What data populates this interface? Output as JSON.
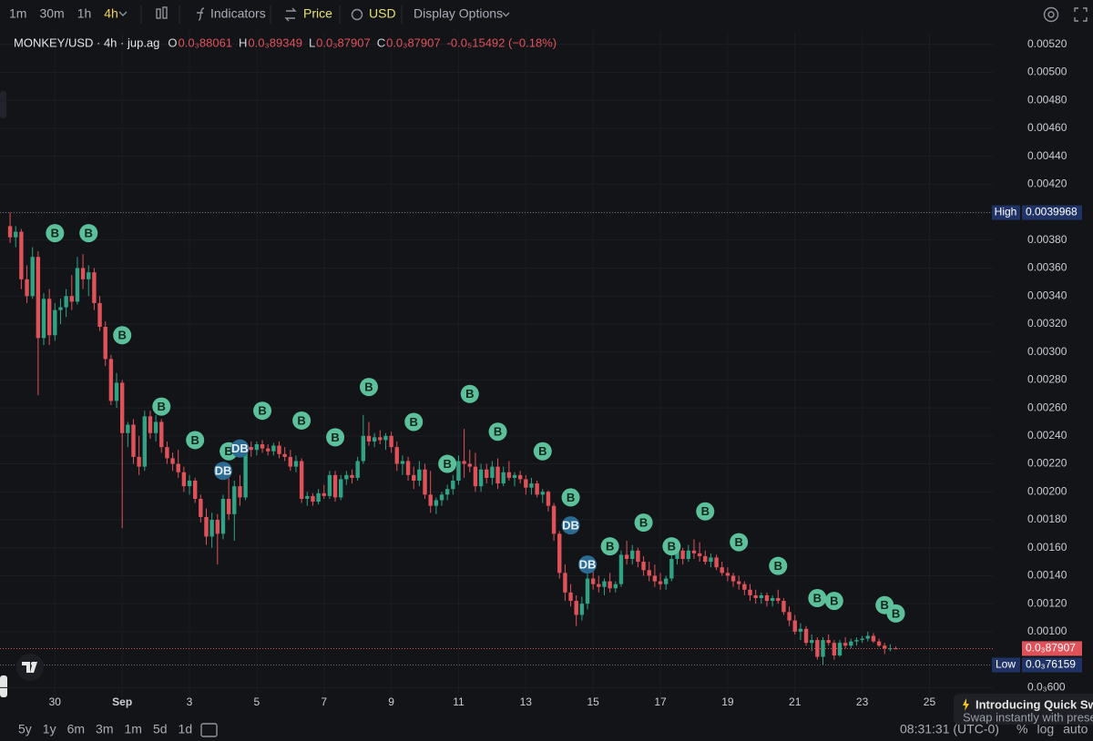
{
  "toolbar": {
    "intervals": [
      "1m",
      "30m",
      "1h",
      "4h"
    ],
    "active_interval": 3,
    "indicators": "Indicators",
    "price": "Price",
    "currency": "USD",
    "display": "Display Options"
  },
  "chart_data": {
    "type": "candlestick",
    "symbol": "MONKEY/USD · 4h · jup.ag",
    "ohlc_legend": [
      {
        "key": "O",
        "value": "0.0₃88061"
      },
      {
        "key": "H",
        "value": "0.0₃89349"
      },
      {
        "key": "L",
        "value": "0.0₃87907"
      },
      {
        "key": "C",
        "value": "0.0₃87907"
      }
    ],
    "change": "-0.0₅15492 (−0.18%)",
    "up_color": "#2fa383",
    "down_color": "#e0525a",
    "grid": true,
    "candles": [
      [
        0.0039,
        0.0039968,
        0.00378,
        0.00382
      ],
      [
        0.00382,
        0.0039,
        0.00375,
        0.00386
      ],
      [
        0.00386,
        0.00388,
        0.00345,
        0.00352
      ],
      [
        0.00352,
        0.00362,
        0.00335,
        0.0034
      ],
      [
        0.0034,
        0.00375,
        0.00338,
        0.00368
      ],
      [
        0.00368,
        0.00372,
        0.00269,
        0.0031
      ],
      [
        0.0031,
        0.00342,
        0.00305,
        0.00338
      ],
      [
        0.00338,
        0.00345,
        0.00305,
        0.00312
      ],
      [
        0.00312,
        0.00335,
        0.00308,
        0.0033
      ],
      [
        0.0033,
        0.00338,
        0.0032,
        0.00332
      ],
      [
        0.00332,
        0.00345,
        0.00325,
        0.0034
      ],
      [
        0.0034,
        0.00355,
        0.0033,
        0.00336
      ],
      [
        0.00336,
        0.00368,
        0.00334,
        0.0036
      ],
      [
        0.0036,
        0.0037,
        0.00345,
        0.00352
      ],
      [
        0.00352,
        0.00362,
        0.0034,
        0.00357
      ],
      [
        0.00357,
        0.0036,
        0.0033,
        0.00335
      ],
      [
        0.00335,
        0.0034,
        0.00315,
        0.00318
      ],
      [
        0.00318,
        0.00322,
        0.0029,
        0.00295
      ],
      [
        0.00295,
        0.00298,
        0.00262,
        0.00265
      ],
      [
        0.00265,
        0.00285,
        0.0026,
        0.00278
      ],
      [
        0.00278,
        0.0028,
        0.00174,
        0.00242
      ],
      [
        0.00242,
        0.0025,
        0.00232,
        0.00248
      ],
      [
        0.00248,
        0.00252,
        0.0022,
        0.00225
      ],
      [
        0.00225,
        0.0024,
        0.00212,
        0.00218
      ],
      [
        0.00218,
        0.00258,
        0.00215,
        0.00254
      ],
      [
        0.00254,
        0.00258,
        0.00238,
        0.00242
      ],
      [
        0.00242,
        0.00255,
        0.00236,
        0.0025
      ],
      [
        0.0025,
        0.00252,
        0.00228,
        0.00232
      ],
      [
        0.00232,
        0.00236,
        0.0022,
        0.00224
      ],
      [
        0.00224,
        0.00228,
        0.00215,
        0.0022
      ],
      [
        0.0022,
        0.0023,
        0.0021,
        0.00214
      ],
      [
        0.00214,
        0.00218,
        0.002,
        0.00204
      ],
      [
        0.00204,
        0.00212,
        0.00198,
        0.00208
      ],
      [
        0.00208,
        0.0021,
        0.00192,
        0.00195
      ],
      [
        0.00195,
        0.00198,
        0.00178,
        0.00182
      ],
      [
        0.00182,
        0.00188,
        0.00162,
        0.00168
      ],
      [
        0.00168,
        0.00185,
        0.0016,
        0.0018
      ],
      [
        0.0018,
        0.00184,
        0.00148,
        0.0017
      ],
      [
        0.0017,
        0.00198,
        0.00166,
        0.00195
      ],
      [
        0.00195,
        0.0021,
        0.0018,
        0.00184
      ],
      [
        0.00184,
        0.00208,
        0.00165,
        0.00204
      ],
      [
        0.00204,
        0.00212,
        0.0019,
        0.00196
      ],
      [
        0.00196,
        0.00235,
        0.00194,
        0.00232
      ],
      [
        0.00232,
        0.00236,
        0.00225,
        0.0023
      ],
      [
        0.0023,
        0.00236,
        0.00226,
        0.00234
      ],
      [
        0.00234,
        0.00237,
        0.00228,
        0.00231
      ],
      [
        0.00231,
        0.00234,
        0.00226,
        0.00229
      ],
      [
        0.00229,
        0.00235,
        0.00226,
        0.00233
      ],
      [
        0.00233,
        0.00236,
        0.00224,
        0.00227
      ],
      [
        0.00227,
        0.00232,
        0.00222,
        0.00225
      ],
      [
        0.00225,
        0.0023,
        0.00215,
        0.00218
      ],
      [
        0.00218,
        0.00226,
        0.00214,
        0.00222
      ],
      [
        0.00222,
        0.00224,
        0.00192,
        0.00195
      ],
      [
        0.00195,
        0.002,
        0.0019,
        0.00197
      ],
      [
        0.00197,
        0.00199,
        0.0019,
        0.00193
      ],
      [
        0.00193,
        0.00202,
        0.00191,
        0.00199
      ],
      [
        0.00199,
        0.00205,
        0.00195,
        0.00197
      ],
      [
        0.00197,
        0.00215,
        0.00195,
        0.00212
      ],
      [
        0.00212,
        0.00215,
        0.00193,
        0.00196
      ],
      [
        0.00196,
        0.00212,
        0.00194,
        0.00209
      ],
      [
        0.00209,
        0.00215,
        0.00205,
        0.00212
      ],
      [
        0.00212,
        0.00216,
        0.00206,
        0.0021
      ],
      [
        0.0021,
        0.00225,
        0.00208,
        0.00222
      ],
      [
        0.00222,
        0.00255,
        0.0022,
        0.0024
      ],
      [
        0.0024,
        0.0025,
        0.00233,
        0.00236
      ],
      [
        0.00236,
        0.00242,
        0.00232,
        0.00239
      ],
      [
        0.00239,
        0.00244,
        0.00234,
        0.00237
      ],
      [
        0.00237,
        0.00242,
        0.0023,
        0.0024
      ],
      [
        0.0024,
        0.00243,
        0.00228,
        0.00232
      ],
      [
        0.00232,
        0.00236,
        0.00215,
        0.0022
      ],
      [
        0.0022,
        0.00226,
        0.00212,
        0.00222
      ],
      [
        0.00222,
        0.00225,
        0.00208,
        0.00212
      ],
      [
        0.00212,
        0.00218,
        0.00202,
        0.00208
      ],
      [
        0.00208,
        0.00222,
        0.00204,
        0.00216
      ],
      [
        0.00216,
        0.0022,
        0.00195,
        0.00198
      ],
      [
        0.00198,
        0.00215,
        0.00185,
        0.0019
      ],
      [
        0.0019,
        0.00196,
        0.00184,
        0.00194
      ],
      [
        0.00194,
        0.002,
        0.0019,
        0.00198
      ],
      [
        0.00198,
        0.00205,
        0.00194,
        0.00202
      ],
      [
        0.00202,
        0.00212,
        0.00198,
        0.00208
      ],
      [
        0.00208,
        0.00226,
        0.00205,
        0.00222
      ],
      [
        0.00222,
        0.00245,
        0.0021,
        0.0022
      ],
      [
        0.0022,
        0.0023,
        0.00214,
        0.00218
      ],
      [
        0.00218,
        0.00228,
        0.002,
        0.00204
      ],
      [
        0.00204,
        0.0022,
        0.002,
        0.00216
      ],
      [
        0.00216,
        0.0022,
        0.00206,
        0.0021
      ],
      [
        0.0021,
        0.00222,
        0.00205,
        0.00218
      ],
      [
        0.00218,
        0.00224,
        0.00202,
        0.00206
      ],
      [
        0.00206,
        0.00218,
        0.00204,
        0.00214
      ],
      [
        0.00214,
        0.00222,
        0.00208,
        0.0021
      ],
      [
        0.0021,
        0.00214,
        0.00204,
        0.00212
      ],
      [
        0.00212,
        0.00215,
        0.00206,
        0.00209
      ],
      [
        0.00209,
        0.00212,
        0.00198,
        0.00203
      ],
      [
        0.00203,
        0.0021,
        0.00198,
        0.00206
      ],
      [
        0.00206,
        0.00208,
        0.00196,
        0.00198
      ],
      [
        0.00198,
        0.00202,
        0.00192,
        0.002
      ],
      [
        0.002,
        0.00201,
        0.00186,
        0.0019
      ],
      [
        0.0019,
        0.00192,
        0.00165,
        0.0017
      ],
      [
        0.0017,
        0.00172,
        0.00138,
        0.00142
      ],
      [
        0.00142,
        0.00148,
        0.00122,
        0.00128
      ],
      [
        0.00128,
        0.00134,
        0.00118,
        0.00122
      ],
      [
        0.00122,
        0.00126,
        0.00104,
        0.00112
      ],
      [
        0.00112,
        0.00125,
        0.00108,
        0.0012
      ],
      [
        0.0012,
        0.00142,
        0.00116,
        0.00138
      ],
      [
        0.00138,
        0.00145,
        0.0013,
        0.00134
      ],
      [
        0.00134,
        0.0014,
        0.00128,
        0.00132
      ],
      [
        0.00132,
        0.00138,
        0.00126,
        0.00136
      ],
      [
        0.00136,
        0.00142,
        0.00128,
        0.00131
      ],
      [
        0.00131,
        0.00136,
        0.00128,
        0.00134
      ],
      [
        0.00134,
        0.00158,
        0.00132,
        0.00155
      ],
      [
        0.00155,
        0.00165,
        0.00148,
        0.00152
      ],
      [
        0.00152,
        0.00162,
        0.00148,
        0.00158
      ],
      [
        0.00158,
        0.0016,
        0.00146,
        0.0015
      ],
      [
        0.0015,
        0.00154,
        0.0014,
        0.00144
      ],
      [
        0.00144,
        0.0015,
        0.00136,
        0.0014
      ],
      [
        0.0014,
        0.00148,
        0.00132,
        0.00136
      ],
      [
        0.00136,
        0.00142,
        0.0013,
        0.00134
      ],
      [
        0.00134,
        0.0014,
        0.0013,
        0.00138
      ],
      [
        0.00138,
        0.00156,
        0.00136,
        0.00152
      ],
      [
        0.00152,
        0.00162,
        0.00148,
        0.00158
      ],
      [
        0.00158,
        0.0016,
        0.00148,
        0.00152
      ],
      [
        0.00152,
        0.00162,
        0.0015,
        0.00158
      ],
      [
        0.00158,
        0.00166,
        0.00152,
        0.00156
      ],
      [
        0.00156,
        0.00164,
        0.0015,
        0.00154
      ],
      [
        0.00154,
        0.00158,
        0.00148,
        0.0015
      ],
      [
        0.0015,
        0.00156,
        0.00146,
        0.00153
      ],
      [
        0.00153,
        0.00155,
        0.00144,
        0.00146
      ],
      [
        0.00146,
        0.0015,
        0.0014,
        0.00142
      ],
      [
        0.00142,
        0.00146,
        0.00136,
        0.0014
      ],
      [
        0.0014,
        0.00142,
        0.00132,
        0.00136
      ],
      [
        0.00136,
        0.0014,
        0.0013,
        0.00134
      ],
      [
        0.00134,
        0.00136,
        0.00126,
        0.0013
      ],
      [
        0.0013,
        0.00134,
        0.00122,
        0.00126
      ],
      [
        0.00126,
        0.0013,
        0.0012,
        0.00124
      ],
      [
        0.00124,
        0.00128,
        0.0012,
        0.00126
      ],
      [
        0.00126,
        0.00128,
        0.00118,
        0.00122
      ],
      [
        0.00122,
        0.00126,
        0.00118,
        0.00124
      ],
      [
        0.00124,
        0.0013,
        0.0012,
        0.00122
      ],
      [
        0.00122,
        0.00124,
        0.00112,
        0.00114
      ],
      [
        0.00114,
        0.00118,
        0.00104,
        0.00108
      ],
      [
        0.00108,
        0.00112,
        0.00098,
        0.001
      ],
      [
        0.001,
        0.00106,
        0.00094,
        0.00102
      ],
      [
        0.00102,
        0.00104,
        0.0009,
        0.00092
      ],
      [
        0.00092,
        0.00098,
        0.00086,
        0.00094
      ],
      [
        0.00094,
        0.00096,
        0.0008,
        0.00082
      ],
      [
        0.00082,
        0.00096,
        0.00076159,
        0.00094
      ],
      [
        0.00094,
        0.00098,
        0.0009,
        0.00092
      ],
      [
        0.00092,
        0.00094,
        0.0008,
        0.00083
      ],
      [
        0.00083,
        0.00094,
        0.00082,
        0.00092
      ],
      [
        0.00092,
        0.00096,
        0.00088,
        0.0009
      ],
      [
        0.0009,
        0.00095,
        0.00088,
        0.00093
      ],
      [
        0.00093,
        0.00096,
        0.0009,
        0.00094
      ],
      [
        0.00094,
        0.00097,
        0.00092,
        0.00095
      ],
      [
        0.00095,
        0.001,
        0.00093,
        0.00097
      ],
      [
        0.00097,
        0.00099,
        0.00092,
        0.00093
      ],
      [
        0.00093,
        0.00095,
        0.00089,
        0.0009
      ],
      [
        0.0009,
        0.00092,
        0.00084,
        0.00088
      ],
      [
        0.00088,
        0.00091,
        0.00086,
        0.00088061
      ],
      [
        0.00088061,
        0.00089349,
        0.00087907,
        0.00087907
      ]
    ],
    "xlim": [
      -1.8,
      175.3
    ],
    "xticks": [
      {
        "value": 8,
        "label": "30"
      },
      {
        "value": 20,
        "label": "Sep"
      },
      {
        "value": 32,
        "label": "3"
      },
      {
        "value": 44,
        "label": "5"
      },
      {
        "value": 56,
        "label": "7"
      },
      {
        "value": 68,
        "label": "9"
      },
      {
        "value": 80,
        "label": "11"
      },
      {
        "value": 92,
        "label": "13"
      },
      {
        "value": 104,
        "label": "15"
      },
      {
        "value": 116,
        "label": "17"
      },
      {
        "value": 128,
        "label": "19"
      },
      {
        "value": 140,
        "label": "21"
      },
      {
        "value": 152,
        "label": "23"
      },
      {
        "value": 164,
        "label": "25"
      }
    ],
    "ylim": [
      0.00055,
      0.00527
    ],
    "yticks": [
      {
        "value": 0.0052,
        "label": "0.00520"
      },
      {
        "value": 0.005,
        "label": "0.00500"
      },
      {
        "value": 0.0048,
        "label": "0.00480"
      },
      {
        "value": 0.0046,
        "label": "0.00460"
      },
      {
        "value": 0.0044,
        "label": "0.00440"
      },
      {
        "value": 0.0042,
        "label": "0.00420"
      },
      {
        "value": 0.004,
        "label": "0.00400"
      },
      {
        "value": 0.0038,
        "label": "0.00380"
      },
      {
        "value": 0.0036,
        "label": "0.00360"
      },
      {
        "value": 0.0034,
        "label": "0.00340"
      },
      {
        "value": 0.0032,
        "label": "0.00320"
      },
      {
        "value": 0.003,
        "label": "0.00300"
      },
      {
        "value": 0.0028,
        "label": "0.00280"
      },
      {
        "value": 0.0026,
        "label": "0.00260"
      },
      {
        "value": 0.0024,
        "label": "0.00240"
      },
      {
        "value": 0.0022,
        "label": "0.00220"
      },
      {
        "value": 0.002,
        "label": "0.00200"
      },
      {
        "value": 0.0018,
        "label": "0.00180"
      },
      {
        "value": 0.0016,
        "label": "0.00160"
      },
      {
        "value": 0.0014,
        "label": "0.00140"
      },
      {
        "value": 0.0012,
        "label": "0.00120"
      },
      {
        "value": 0.001,
        "label": "0.00100"
      },
      {
        "value": 0.0006,
        "label": "0.0₃600"
      }
    ],
    "price_lines": [
      {
        "name": "High",
        "value": 0.0039968,
        "color": "#1f3366"
      },
      {
        "value": 0.00087907,
        "label": "0.0₃87907",
        "color": "#e0525a"
      },
      {
        "name": "Low",
        "value": 0.00076159,
        "label": "0.0₃76159",
        "color": "#1f3366"
      }
    ],
    "marker_colors": {
      "B": "#5cc09b",
      "DB": "#2b6b92"
    },
    "markers": [
      {
        "label": "B",
        "candle": 8,
        "price": 0.00385
      },
      {
        "label": "B",
        "candle": 14,
        "price": 0.00385
      },
      {
        "label": "B",
        "candle": 20,
        "price": 0.00312
      },
      {
        "label": "B",
        "candle": 27,
        "price": 0.00261
      },
      {
        "label": "B",
        "candle": 33,
        "price": 0.00237
      },
      {
        "label": "DB",
        "candle": 38,
        "price": 0.00215
      },
      {
        "label": "B",
        "candle": 39,
        "price": 0.00229
      },
      {
        "label": "DB",
        "candle": 41,
        "price": 0.00231
      },
      {
        "label": "B",
        "candle": 45,
        "price": 0.00258
      },
      {
        "label": "B",
        "candle": 52,
        "price": 0.00251
      },
      {
        "label": "B",
        "candle": 58,
        "price": 0.00239
      },
      {
        "label": "B",
        "candle": 64,
        "price": 0.00275
      },
      {
        "label": "B",
        "candle": 72,
        "price": 0.0025
      },
      {
        "label": "B",
        "candle": 78,
        "price": 0.0022
      },
      {
        "label": "B",
        "candle": 82,
        "price": 0.0027
      },
      {
        "label": "B",
        "candle": 87,
        "price": 0.00243
      },
      {
        "label": "B",
        "candle": 95,
        "price": 0.00229
      },
      {
        "label": "B",
        "candle": 100,
        "price": 0.00196
      },
      {
        "label": "DB",
        "candle": 100,
        "price": 0.00176
      },
      {
        "label": "DB",
        "candle": 103,
        "price": 0.00148
      },
      {
        "label": "B",
        "candle": 107,
        "price": 0.00161
      },
      {
        "label": "B",
        "candle": 113,
        "price": 0.00178
      },
      {
        "label": "B",
        "candle": 118,
        "price": 0.00161
      },
      {
        "label": "B",
        "candle": 124,
        "price": 0.00186
      },
      {
        "label": "B",
        "candle": 130,
        "price": 0.00164
      },
      {
        "label": "B",
        "candle": 137,
        "price": 0.00147
      },
      {
        "label": "B",
        "candle": 144,
        "price": 0.00124
      },
      {
        "label": "B",
        "candle": 147,
        "price": 0.00122
      },
      {
        "label": "B",
        "candle": 156,
        "price": 0.00119
      },
      {
        "label": "B",
        "candle": 158,
        "price": 0.00113
      }
    ]
  },
  "footer": {
    "ranges": [
      "5y",
      "1y",
      "6m",
      "3m",
      "1m",
      "5d",
      "1d"
    ],
    "time": "08:31:31 (UTC-0)",
    "scale": [
      "%",
      "log",
      "auto"
    ]
  },
  "toast": {
    "title": "Introducing Quick Swap",
    "text": "Swap instantly with preset a"
  }
}
